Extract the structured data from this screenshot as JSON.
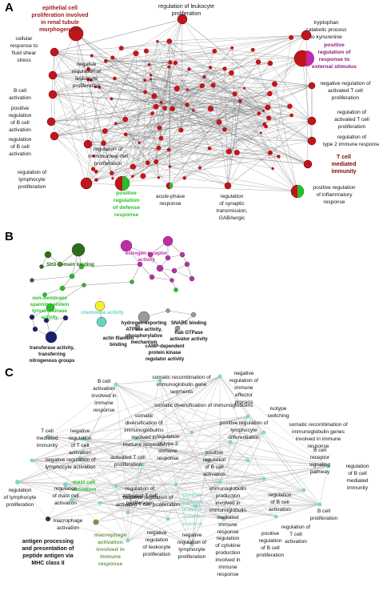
{
  "colors": {
    "red_node": "#c0161b",
    "dark_red_text": "#9e1b1b",
    "maroon_text": "#7a0a0a",
    "purple_text": "#8e1d86",
    "magenta": "#c02ca8",
    "green": "#25c025",
    "dark_green": "#2e6e1a",
    "navy": "#1a1f6e",
    "teal": "#6ad3c0",
    "gray": "#9a9a9a",
    "yellow": "#f5f02a",
    "olive_green": "#6d9a4a",
    "edge": "#6e6e6e",
    "edge_light": "#b9b9b9"
  },
  "panel_a": {
    "letter": "A",
    "labels": [
      "epithelial cell",
      "proliferation involved",
      "in renal tubule",
      "morphogenesis",
      "regulation of leukocyte",
      "proliferation",
      "tryptophan",
      "catabolic process",
      "to kynurenine",
      "positive",
      "regulation of",
      "response to",
      "external stimulus",
      "cellular",
      "response to",
      "fluid shear",
      "stress",
      "negative",
      "regulation of",
      "leukocyte",
      "proliferation",
      "negative regulation of",
      "activated T cell",
      "proliferation",
      "B cell",
      "activation",
      "positive",
      "regulation",
      "of B cell",
      "activation",
      "regulation of",
      "activated T cell",
      "proliferation",
      "regulation of",
      "type 2 immune response",
      "regulation",
      "of B cell",
      "activation",
      "regulation of",
      "mononuclear cell",
      "proliferation",
      "T cell",
      "mediated",
      "immunity",
      "regulation of",
      "lymphocyte",
      "proliferation",
      "positive",
      "regulation",
      "of defense",
      "response",
      "acute-phase",
      "response",
      "regulation",
      "of synaptic",
      "transmission,",
      "GABAergic",
      "positive regulation",
      "of inflammatory",
      "response"
    ]
  },
  "panel_b": {
    "letter": "B",
    "labels": [
      "SH3 domain binding",
      "estrogen receptor",
      "activity",
      "non-membrane",
      "spanning protein",
      "tyrosine kinase",
      "activity",
      "chemokine activity",
      "hydrogen-exporting",
      "ATPase activity,",
      "phosphorylative",
      "mechanism",
      "SNARE binding",
      "Rab GTPase",
      "activator activity",
      "actin filament",
      "binding",
      "cAMP-dependent",
      "protein kinase",
      "regulator activity",
      "transferase activity,",
      "transferring",
      "nitrogenous groups"
    ]
  },
  "panel_c": {
    "letter": "C",
    "labels": [
      "B cell",
      "activation",
      "involved in",
      "immune",
      "response",
      "somatic recombination of",
      "immunoglobulin gene",
      "segments",
      "negative",
      "regulation of",
      "immune",
      "effector",
      "process",
      "isotype",
      "switching",
      "somatic diversification of immunoglobulins",
      "somatic recombination of",
      "immunoglobulin genes",
      "involved in immune",
      "response",
      "somatic",
      "diversification of",
      "immunoglobulins",
      "involved in",
      "immune response",
      "positive regulation of",
      "lymphocyte",
      "differentiation",
      "T cell",
      "mediated",
      "immunity",
      "negative",
      "regulation",
      "of T cell",
      "activation",
      "negative regulation of",
      "lymphocyte activation",
      "regulation",
      "of type 2",
      "immune",
      "response",
      "activated T cell",
      "proliferation",
      "positive",
      "regulation",
      "of B cell",
      "activation",
      "B cell",
      "receptor",
      "signaling",
      "pathway",
      "regulation",
      "of B cell",
      "mediated",
      "immunity",
      "mast cell",
      "activation",
      "regulation",
      "of mast cell",
      "activation",
      "regulation of",
      "activated T cell",
      "proliferation",
      "regulation",
      "of lymphocyte",
      "proliferation",
      "immunoglobulin",
      "production",
      "involved in",
      "immunoglobulin",
      "mediated",
      "immune",
      "response",
      "positive",
      "regulation",
      "of type 2",
      "immune",
      "response",
      "B cell",
      "proliferation",
      "regulation",
      "of B cell",
      "activation",
      "macrophage",
      "activation",
      "negative regulation of",
      "activated T cell proliferation",
      "antigen processing",
      "and presentation of",
      "peptide antigen via",
      "MHC class II",
      "macrophage",
      "activation",
      "involved in",
      "immune",
      "response",
      "negative",
      "regulation",
      "of leukocyte",
      "proliferation",
      "negative",
      "regulation of",
      "lymphocyte",
      "proliferation",
      "regulation",
      "of cytokine",
      "production",
      "involved in",
      "immune",
      "response",
      "positive",
      "regulation",
      "of B cell",
      "proliferation",
      "regulation of",
      "T cell",
      "activation"
    ]
  }
}
